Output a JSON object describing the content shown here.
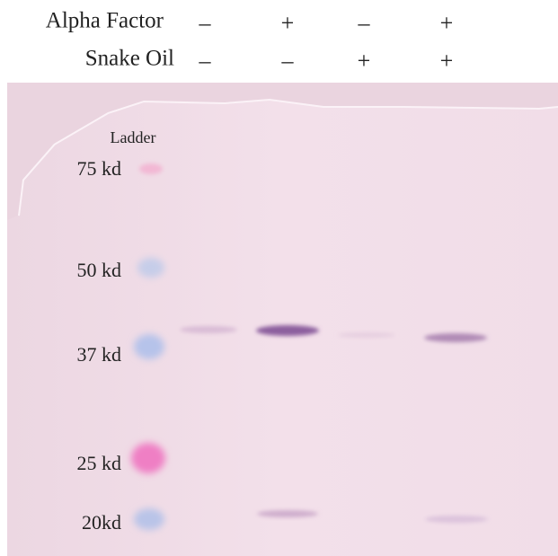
{
  "conditions": [
    {
      "label": "Alpha Factor",
      "signs": [
        "–",
        "+",
        "–",
        "+"
      ]
    },
    {
      "label": "Snake Oil",
      "signs": [
        "–",
        "–",
        "+",
        "+"
      ]
    }
  ],
  "ladder": {
    "title": "Ladder",
    "markers": [
      "75 kd",
      "50 kd",
      "37 kd",
      "25 kd",
      "20kd"
    ]
  }
}
